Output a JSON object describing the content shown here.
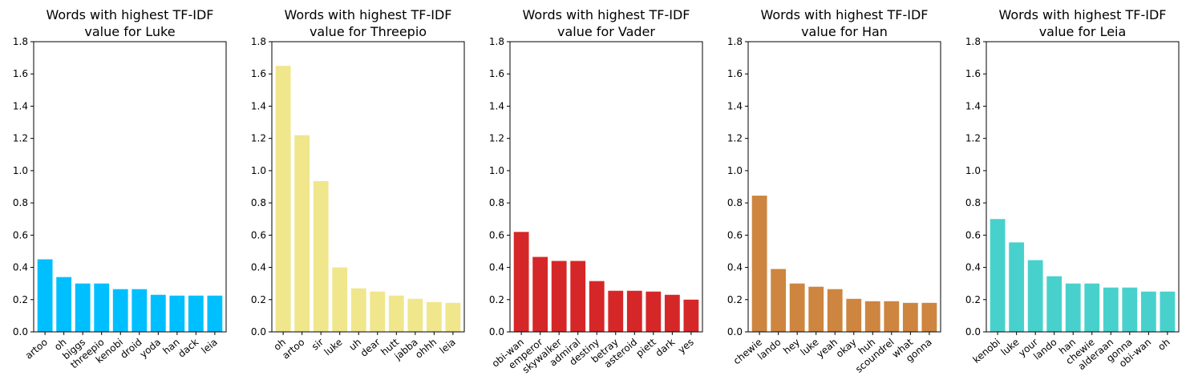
{
  "chart_data": [
    {
      "type": "bar",
      "title_line1": "Words with highest TF-IDF",
      "title_line2": "value for Luke",
      "color": "#00bfff",
      "categories": [
        "artoo",
        "oh",
        "biggs",
        "threepio",
        "kenobi",
        "droid",
        "yoda",
        "han",
        "dack",
        "leia"
      ],
      "values": [
        0.45,
        0.34,
        0.3,
        0.3,
        0.265,
        0.265,
        0.23,
        0.225,
        0.225,
        0.225
      ],
      "ylim": [
        0,
        1.8
      ],
      "yticks": [
        "0.0",
        "0.2",
        "0.4",
        "0.6",
        "0.8",
        "1.0",
        "1.2",
        "1.4",
        "1.6",
        "1.8"
      ]
    },
    {
      "type": "bar",
      "title_line1": "Words with highest TF-IDF",
      "title_line2": "value for Threepio",
      "color": "#f0e68c",
      "categories": [
        "oh",
        "artoo",
        "sir",
        "luke",
        "uh",
        "dear",
        "hutt",
        "jabba",
        "ohhh",
        "leia"
      ],
      "values": [
        1.65,
        1.22,
        0.935,
        0.4,
        0.27,
        0.25,
        0.225,
        0.205,
        0.185,
        0.18
      ],
      "ylim": [
        0,
        1.8
      ],
      "yticks": [
        "0.0",
        "0.2",
        "0.4",
        "0.6",
        "0.8",
        "1.0",
        "1.2",
        "1.4",
        "1.6",
        "1.8"
      ]
    },
    {
      "type": "bar",
      "title_line1": "Words with highest TF-IDF",
      "title_line2": "value for Vader",
      "color": "#d62728",
      "categories": [
        "obi-wan",
        "emperor",
        "skywalker",
        "admiral",
        "destiny",
        "betray",
        "asteroid",
        "piett",
        "dark",
        "yes"
      ],
      "values": [
        0.62,
        0.465,
        0.44,
        0.44,
        0.315,
        0.255,
        0.255,
        0.25,
        0.23,
        0.2
      ],
      "ylim": [
        0,
        1.8
      ],
      "yticks": [
        "0.0",
        "0.2",
        "0.4",
        "0.6",
        "0.8",
        "1.0",
        "1.2",
        "1.4",
        "1.6",
        "1.8"
      ]
    },
    {
      "type": "bar",
      "title_line1": "Words with highest TF-IDF",
      "title_line2": "value for Han",
      "color": "#cd853f",
      "categories": [
        "chewie",
        "lando",
        "hey",
        "luke",
        "yeah",
        "okay",
        "huh",
        "scoundrel",
        "what",
        "gonna"
      ],
      "values": [
        0.845,
        0.39,
        0.3,
        0.28,
        0.265,
        0.205,
        0.19,
        0.19,
        0.18,
        0.18
      ],
      "ylim": [
        0,
        1.8
      ],
      "yticks": [
        "0.0",
        "0.2",
        "0.4",
        "0.6",
        "0.8",
        "1.0",
        "1.2",
        "1.4",
        "1.6",
        "1.8"
      ]
    },
    {
      "type": "bar",
      "title_line1": "Words with highest TF-IDF",
      "title_line2": "value for Leia",
      "color": "#48d1cc",
      "categories": [
        "kenobi",
        "luke",
        "your",
        "lando",
        "han",
        "chewie",
        "alderaan",
        "gonna",
        "obi-wan",
        "oh"
      ],
      "values": [
        0.7,
        0.555,
        0.445,
        0.345,
        0.3,
        0.3,
        0.275,
        0.275,
        0.25,
        0.25
      ],
      "ylim": [
        0,
        1.8
      ],
      "yticks": [
        "0.0",
        "0.2",
        "0.4",
        "0.6",
        "0.8",
        "1.0",
        "1.2",
        "1.4",
        "1.6",
        "1.8"
      ]
    }
  ]
}
